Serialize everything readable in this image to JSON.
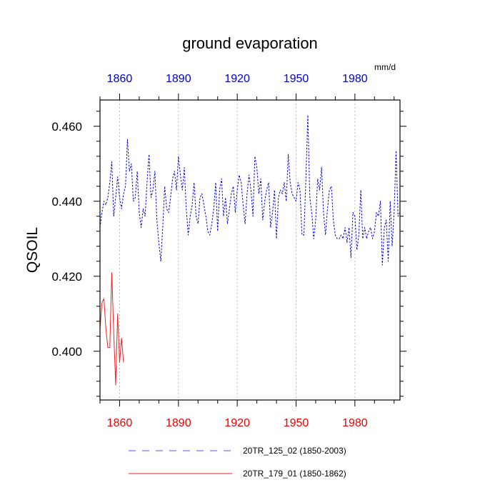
{
  "chart_data": {
    "type": "line",
    "title": "ground evaporation",
    "ylabel": "QSOIL",
    "units": "mm/d",
    "xlim": [
      1850,
      2003
    ],
    "ylim": [
      0.387,
      0.467
    ],
    "yticks": [
      0.4,
      0.42,
      0.44,
      0.46
    ],
    "ytick_labels": [
      "0.400",
      "0.420",
      "0.440",
      "0.460"
    ],
    "xticks_bottom": [
      1860,
      1890,
      1920,
      1950,
      1980
    ],
    "xticks_top": [
      1860,
      1890,
      1920,
      1950,
      1980
    ],
    "grid": "vertical dotted at x ticks",
    "legend_position": "bottom",
    "series": [
      {
        "name": "20TR_125_02 (1850-2003)",
        "color": "#0000cc",
        "style": "dashed",
        "x": [
          1850,
          1851,
          1852,
          1853,
          1854,
          1855,
          1856,
          1857,
          1858,
          1859,
          1860,
          1861,
          1862,
          1863,
          1864,
          1865,
          1866,
          1867,
          1868,
          1869,
          1870,
          1871,
          1872,
          1873,
          1874,
          1875,
          1876,
          1877,
          1878,
          1879,
          1880,
          1881,
          1882,
          1883,
          1884,
          1885,
          1886,
          1887,
          1888,
          1889,
          1890,
          1891,
          1892,
          1893,
          1894,
          1895,
          1896,
          1897,
          1898,
          1899,
          1900,
          1901,
          1902,
          1903,
          1904,
          1905,
          1906,
          1907,
          1908,
          1909,
          1910,
          1911,
          1912,
          1913,
          1914,
          1915,
          1916,
          1917,
          1918,
          1919,
          1920,
          1921,
          1922,
          1923,
          1924,
          1925,
          1926,
          1927,
          1928,
          1929,
          1930,
          1931,
          1932,
          1933,
          1934,
          1935,
          1936,
          1937,
          1938,
          1939,
          1940,
          1941,
          1942,
          1943,
          1944,
          1945,
          1946,
          1947,
          1948,
          1949,
          1950,
          1951,
          1952,
          1953,
          1954,
          1955,
          1956,
          1957,
          1958,
          1959,
          1960,
          1961,
          1962,
          1963,
          1964,
          1965,
          1966,
          1967,
          1968,
          1969,
          1970,
          1971,
          1972,
          1973,
          1974,
          1975,
          1976,
          1977,
          1978,
          1979,
          1980,
          1981,
          1982,
          1983,
          1984,
          1985,
          1986,
          1987,
          1988,
          1989,
          1990,
          1991,
          1992,
          1993,
          1994,
          1995,
          1996,
          1997,
          1998,
          1999,
          2000,
          2001,
          2002,
          2003
        ],
        "values": [
          0.433,
          0.437,
          0.44,
          0.439,
          0.441,
          0.445,
          0.4505,
          0.436,
          0.441,
          0.4465,
          0.441,
          0.438,
          0.442,
          0.444,
          0.4565,
          0.448,
          0.45,
          0.44,
          0.441,
          0.448,
          0.437,
          0.433,
          0.438,
          0.436,
          0.445,
          0.4525,
          0.441,
          0.443,
          0.448,
          0.435,
          0.429,
          0.424,
          0.433,
          0.444,
          0.438,
          0.437,
          0.441,
          0.446,
          0.448,
          0.443,
          0.452,
          0.447,
          0.443,
          0.449,
          0.438,
          0.431,
          0.436,
          0.439,
          0.445,
          0.436,
          0.434,
          0.441,
          0.442,
          0.439,
          0.436,
          0.432,
          0.431,
          0.434,
          0.438,
          0.445,
          0.432,
          0.443,
          0.446,
          0.436,
          0.441,
          0.434,
          0.438,
          0.442,
          0.444,
          0.437,
          0.443,
          0.447,
          0.445,
          0.439,
          0.434,
          0.442,
          0.447,
          0.443,
          0.436,
          0.452,
          0.449,
          0.442,
          0.446,
          0.435,
          0.44,
          0.443,
          0.445,
          0.433,
          0.437,
          0.443,
          0.43,
          0.441,
          0.443,
          0.442,
          0.445,
          0.44,
          0.4525,
          0.445,
          0.442,
          0.441,
          0.44,
          0.445,
          0.443,
          0.431,
          0.431,
          0.446,
          0.463,
          0.441,
          0.437,
          0.43,
          0.435,
          0.446,
          0.443,
          0.449,
          0.437,
          0.431,
          0.438,
          0.443,
          0.444,
          0.435,
          0.431,
          0.43,
          0.43,
          0.431,
          0.43,
          0.433,
          0.429,
          0.433,
          0.425,
          0.437,
          0.436,
          0.427,
          0.431,
          0.443,
          0.43,
          0.433,
          0.43,
          0.432,
          0.433,
          0.43,
          0.432,
          0.437,
          0.436,
          0.44,
          0.423,
          0.433,
          0.435,
          0.424,
          0.44,
          0.428,
          0.437,
          0.4535,
          0.436,
          0.437
        ]
      },
      {
        "name": "20TR_179_01 (1850-1862)",
        "color": "#ee2222",
        "style": "solid",
        "x": [
          1850,
          1851,
          1852,
          1853,
          1854,
          1855,
          1856,
          1857,
          1858,
          1859,
          1860,
          1861,
          1862
        ],
        "values": [
          0.406,
          0.413,
          0.414,
          0.406,
          0.401,
          0.401,
          0.421,
          0.405,
          0.391,
          0.41,
          0.397,
          0.4035,
          0.397
        ]
      }
    ]
  }
}
